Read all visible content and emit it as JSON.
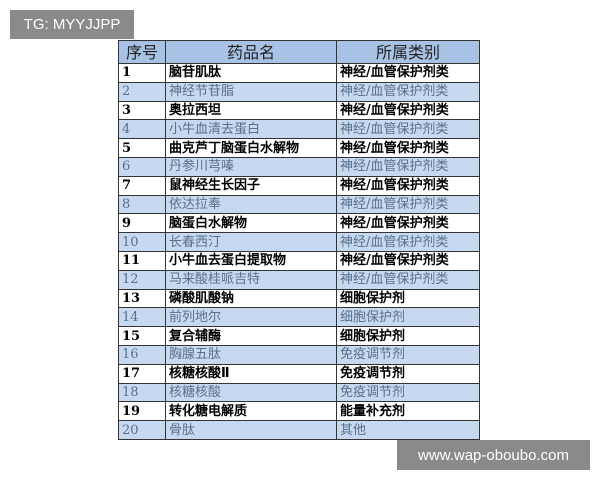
{
  "watermark_top": "TG: MYYJJPP",
  "watermark_bottom": "www.wap-oboubo.com",
  "table": {
    "headers": [
      "序号",
      "药品名",
      "所属类别"
    ],
    "rows": [
      [
        "1",
        "脑苷肌肽",
        "神经/血管保护剂类"
      ],
      [
        "2",
        "神经节苷脂",
        "神经/血管保护剂类"
      ],
      [
        "3",
        "奥拉西坦",
        "神经/血管保护剂类"
      ],
      [
        "4",
        "小牛血清去蛋白",
        "神经/血管保护剂类"
      ],
      [
        "5",
        "曲克芦丁脑蛋白水解物",
        "神经/血管保护剂类"
      ],
      [
        "6",
        "丹参川芎嗪",
        "神经/血管保护剂类"
      ],
      [
        "7",
        "鼠神经生长因子",
        "神经/血管保护剂类"
      ],
      [
        "8",
        "依达拉奉",
        "神经/血管保护剂类"
      ],
      [
        "9",
        "脑蛋白水解物",
        "神经/血管保护剂类"
      ],
      [
        "10",
        "长春西汀",
        "神经/血管保护剂类"
      ],
      [
        "11",
        "小牛血去蛋白提取物",
        "神经/血管保护剂类"
      ],
      [
        "12",
        "马来酸桂哌吉特",
        "神经/血管保护剂类"
      ],
      [
        "13",
        "磷酸肌酸钠",
        "细胞保护剂"
      ],
      [
        "14",
        "前列地尔",
        "细胞保护剂"
      ],
      [
        "15",
        "复合辅酶",
        "细胞保护剂"
      ],
      [
        "16",
        "胸腺五肽",
        "免疫调节剂"
      ],
      [
        "17",
        "核糖核酸Ⅱ",
        "免疫调节剂"
      ],
      [
        "18",
        "核糖核酸",
        "免疫调节剂"
      ],
      [
        "19",
        "转化糖电解质",
        "能量补充剂"
      ],
      [
        "20",
        "骨肽",
        "其他"
      ]
    ]
  }
}
